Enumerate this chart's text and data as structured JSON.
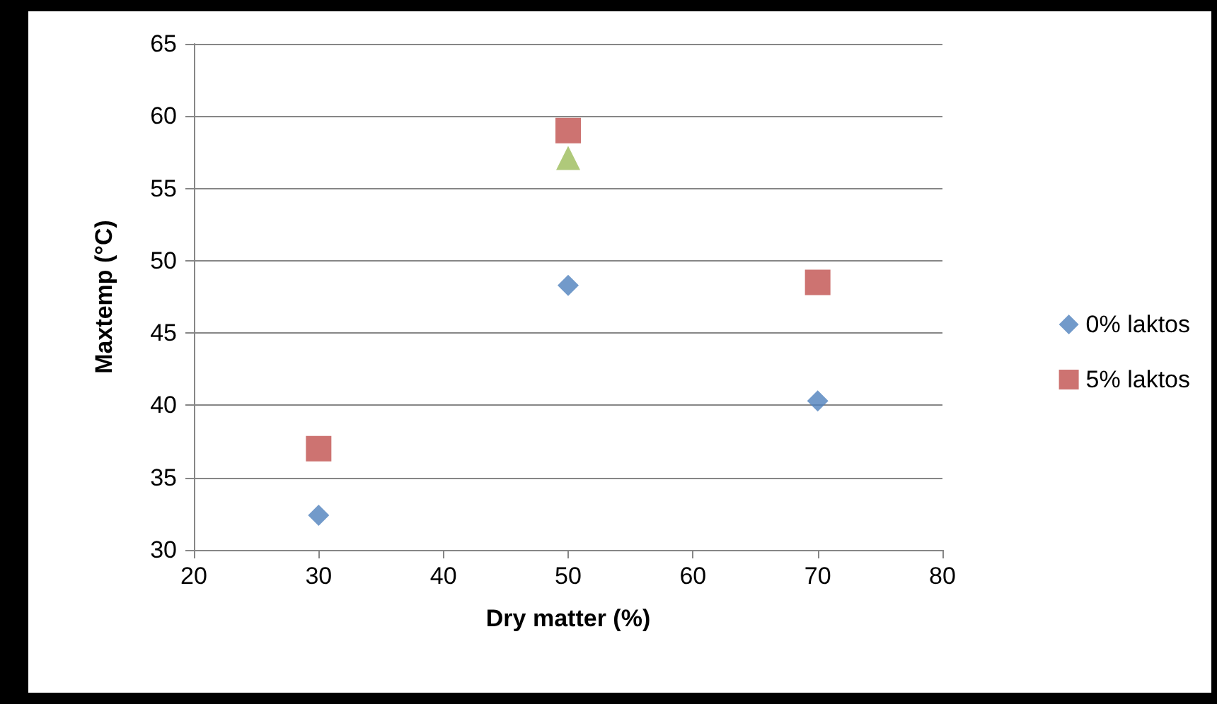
{
  "chart_data": {
    "type": "scatter",
    "xlabel": "Dry matter (%)",
    "ylabel": "Maxtemp (°C)",
    "xlim": [
      20,
      80
    ],
    "xticks": [
      20,
      30,
      40,
      50,
      60,
      70,
      80
    ],
    "ylim": [
      30,
      65
    ],
    "yticks": [
      30,
      35,
      40,
      45,
      50,
      55,
      60,
      65
    ],
    "grid": "y",
    "legend": "right",
    "series": [
      {
        "name": "0% laktos",
        "color": "#4f81bd",
        "marker": "diamond",
        "x": [
          30,
          50,
          70
        ],
        "values": [
          32.4,
          48.3,
          40.3
        ]
      },
      {
        "name": "5% laktos",
        "color": "#c0504d",
        "marker": "square",
        "x": [
          30,
          50,
          70
        ],
        "values": [
          37.0,
          59.0,
          48.5
        ]
      },
      {
        "color": "#9bbb59",
        "marker": "triangle",
        "x": [
          50
        ],
        "values": [
          57.1
        ]
      }
    ]
  }
}
